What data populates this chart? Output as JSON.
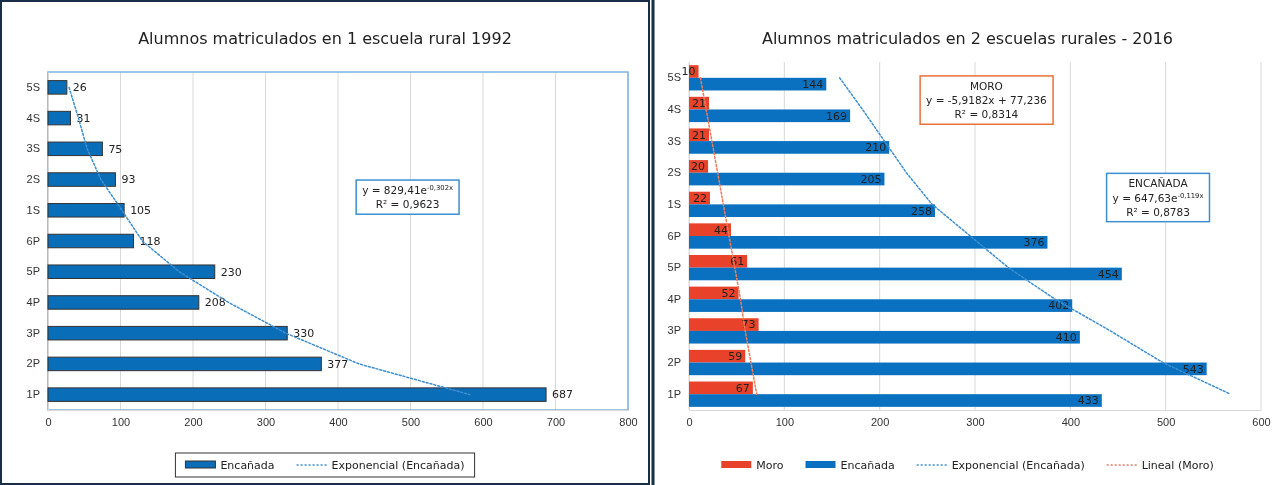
{
  "chart_data": [
    {
      "type": "bar",
      "orientation": "horizontal",
      "title": "Alumnos matriculados en 1 escuela rural 1992",
      "categories": [
        "5S",
        "4S",
        "3S",
        "2S",
        "1S",
        "6P",
        "5P",
        "4P",
        "3P",
        "2P",
        "1P"
      ],
      "series": [
        {
          "name": "Encañada",
          "color": "#0a6db8",
          "values": [
            26,
            31,
            75,
            93,
            105,
            118,
            230,
            208,
            330,
            377,
            687
          ],
          "value_labels": [
            "26",
            "31",
            "75",
            "93",
            "105",
            "118",
            "230",
            "208",
            "330",
            "377",
            "687"
          ]
        },
        {
          "name": "Exponencial (Encañada)",
          "type": "line",
          "line_style": "dotted",
          "color": "#3d8fd0",
          "values": [
            29,
            42,
            54,
            73,
            102,
            130,
            181,
            249,
            328,
            429,
            582
          ]
        }
      ],
      "xlim": [
        0,
        800
      ],
      "xticks": [
        0,
        100,
        200,
        300,
        400,
        500,
        600,
        700,
        800
      ],
      "grid": "x",
      "legend": "bottom",
      "annotations": [
        "y = 829,41e$^{-0,302x}$\nR² = 0,9623"
      ]
    },
    {
      "type": "bar",
      "orientation": "horizontal",
      "title": "Alumnos matriculados en 2 escuelas rurales - 2016",
      "categories": [
        "5S",
        "4S",
        "3S",
        "2S",
        "1S",
        "6P",
        "5P",
        "4P",
        "3P",
        "2P",
        "1P"
      ],
      "series": [
        {
          "name": "Moro",
          "color": "#e8432a",
          "values": [
            10,
            21,
            21,
            20,
            22,
            44,
            61,
            52,
            73,
            59,
            67
          ],
          "value_labels": [
            "10",
            "21",
            "21",
            "20",
            "22",
            "44",
            "61",
            "52",
            "73",
            "59",
            "67"
          ]
        },
        {
          "name": "Encañada",
          "color": "#0a70c0",
          "values": [
            144,
            169,
            210,
            205,
            258,
            376,
            454,
            402,
            410,
            543,
            433
          ],
          "value_labels": [
            "144",
            "169",
            "210",
            "205",
            "258",
            "376",
            "454",
            "402",
            "410",
            "543",
            "433"
          ]
        },
        {
          "name": "Exponencial (Encañada)",
          "type": "line",
          "line_style": "dotted",
          "color": "#3d8fd0",
          "values": [
            158,
            182,
            205,
            228,
            255,
            295,
            335,
            384,
            442,
            497,
            568
          ]
        },
        {
          "name": "Lineal (Moro)",
          "type": "line",
          "line_style": "dotted",
          "color": "#f07a5a",
          "values": [
            12,
            18,
            24,
            30,
            36,
            42,
            48,
            54,
            59,
            65,
            71
          ]
        }
      ],
      "xlim": [
        0,
        600
      ],
      "xticks": [
        0,
        100,
        200,
        300,
        400,
        500,
        600
      ],
      "grid": "x",
      "legend": "bottom",
      "annotations": [
        "MORO\ny = -5,9182x + 77,236\nR² = 0,8314",
        "ENCAÑADA\ny = 647,63e$^{-0,119x}$\nR² = 0,8783"
      ]
    }
  ]
}
